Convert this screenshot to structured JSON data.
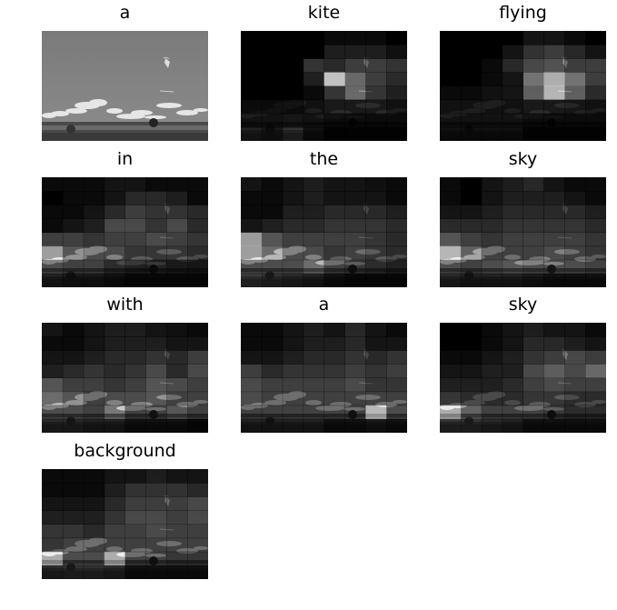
{
  "figure": {
    "words": [
      "a",
      "kite",
      "flying",
      "in",
      "the",
      "sky",
      "with",
      "a",
      "sky",
      "background"
    ]
  },
  "attention": {
    "grid_cols": 8,
    "grid_rows": 8,
    "maps": [
      [],
      [
        [
          0,
          0,
          0,
          0,
          0.05,
          0.05,
          0.05,
          0
        ],
        [
          0,
          0,
          0,
          0,
          0.15,
          0.15,
          0.15,
          0.08
        ],
        [
          0,
          0,
          0,
          0.25,
          0.2,
          0.3,
          0.3,
          0.25
        ],
        [
          0,
          0,
          0,
          0.15,
          0.9,
          0.5,
          0.3,
          0.2
        ],
        [
          0,
          0,
          0,
          0.05,
          0.25,
          0.5,
          0.25,
          0.15
        ],
        [
          0.05,
          0.05,
          0.05,
          0.08,
          0.12,
          0.12,
          0.12,
          0.08
        ],
        [
          0.08,
          0.08,
          0.1,
          0.08,
          0.05,
          0.05,
          0.05,
          0.05
        ],
        [
          0.2,
          0.15,
          0.3,
          0.1,
          0.02,
          0.02,
          0.02,
          0.02
        ]
      ],
      [
        [
          0,
          0,
          0,
          0,
          0.1,
          0.1,
          0.05,
          0
        ],
        [
          0,
          0,
          0,
          0.1,
          0.25,
          0.3,
          0.2,
          0.1
        ],
        [
          0,
          0,
          0.05,
          0.2,
          0.35,
          0.4,
          0.3,
          0.3
        ],
        [
          0,
          0,
          0.05,
          0.1,
          0.55,
          0.75,
          0.55,
          0.3
        ],
        [
          0.05,
          0.05,
          0.08,
          0.1,
          0.45,
          0.8,
          0.45,
          0.2
        ],
        [
          0.08,
          0.08,
          0.08,
          0.08,
          0.12,
          0.12,
          0.1,
          0.08
        ],
        [
          0.08,
          0.08,
          0.08,
          0.08,
          0.05,
          0.05,
          0.05,
          0.05
        ],
        [
          0.1,
          0.1,
          0.1,
          0.1,
          0.02,
          0.02,
          0.02,
          0.02
        ]
      ],
      [
        [
          0.05,
          0.05,
          0.05,
          0.1,
          0.1,
          0.05,
          0.05,
          0.05
        ],
        [
          0,
          0.05,
          0.05,
          0.1,
          0.2,
          0.2,
          0.15,
          0.05
        ],
        [
          0.05,
          0.05,
          0.1,
          0.2,
          0.3,
          0.25,
          0.25,
          0.2
        ],
        [
          0.05,
          0.1,
          0.15,
          0.35,
          0.35,
          0.25,
          0.35,
          0.2
        ],
        [
          0.3,
          0.3,
          0.25,
          0.3,
          0.3,
          0.35,
          0.3,
          0.25
        ],
        [
          0.6,
          0.4,
          0.35,
          0.35,
          0.25,
          0.25,
          0.25,
          0.2
        ],
        [
          0.35,
          0.3,
          0.3,
          0.2,
          0.15,
          0.15,
          0.12,
          0.1
        ],
        [
          0.2,
          0.15,
          0.15,
          0.1,
          0.05,
          0.05,
          0.05,
          0.05
        ]
      ],
      [
        [
          0.1,
          0.05,
          0.1,
          0.15,
          0.1,
          0.1,
          0.08,
          0.05
        ],
        [
          0.05,
          0.05,
          0.1,
          0.15,
          0.1,
          0.1,
          0.1,
          0.05
        ],
        [
          0.05,
          0.05,
          0.15,
          0.15,
          0.2,
          0.2,
          0.2,
          0.15
        ],
        [
          0.1,
          0.15,
          0.2,
          0.2,
          0.25,
          0.25,
          0.25,
          0.2
        ],
        [
          0.6,
          0.4,
          0.3,
          0.3,
          0.3,
          0.3,
          0.25,
          0.2
        ],
        [
          0.6,
          0.5,
          0.35,
          0.35,
          0.25,
          0.3,
          0.25,
          0.2
        ],
        [
          0.35,
          0.35,
          0.35,
          0.5,
          0.3,
          0.25,
          0.2,
          0.15
        ],
        [
          0.35,
          0.3,
          0.25,
          0.2,
          0.1,
          0.05,
          0.05,
          0.05
        ]
      ],
      [
        [
          0.05,
          0,
          0.1,
          0.15,
          0.2,
          0.1,
          0.05,
          0.05
        ],
        [
          0.05,
          0,
          0.1,
          0.15,
          0.15,
          0.15,
          0.1,
          0.05
        ],
        [
          0.1,
          0.1,
          0.15,
          0.2,
          0.2,
          0.2,
          0.2,
          0.15
        ],
        [
          0.2,
          0.2,
          0.2,
          0.25,
          0.25,
          0.25,
          0.25,
          0.2
        ],
        [
          0.4,
          0.3,
          0.25,
          0.3,
          0.3,
          0.3,
          0.3,
          0.25
        ],
        [
          0.8,
          0.45,
          0.3,
          0.3,
          0.3,
          0.35,
          0.3,
          0.25
        ],
        [
          0.35,
          0.3,
          0.35,
          0.4,
          0.35,
          0.35,
          0.35,
          0.3
        ],
        [
          0.25,
          0.2,
          0.2,
          0.2,
          0.15,
          0.1,
          0.1,
          0.1
        ]
      ],
      [
        [
          0.1,
          0.05,
          0.1,
          0.15,
          0.15,
          0.1,
          0.08,
          0.05
        ],
        [
          0.05,
          0.05,
          0.1,
          0.15,
          0.15,
          0.15,
          0.1,
          0.1
        ],
        [
          0.1,
          0.1,
          0.15,
          0.2,
          0.2,
          0.25,
          0.2,
          0.3
        ],
        [
          0.15,
          0.2,
          0.25,
          0.2,
          0.25,
          0.35,
          0.2,
          0.35
        ],
        [
          0.4,
          0.3,
          0.3,
          0.25,
          0.3,
          0.4,
          0.35,
          0.3
        ],
        [
          0.5,
          0.4,
          0.3,
          0.35,
          0.35,
          0.4,
          0.3,
          0.3
        ],
        [
          0.35,
          0.35,
          0.3,
          0.55,
          0.3,
          0.3,
          0.4,
          0.3
        ],
        [
          0.25,
          0.25,
          0.2,
          0.2,
          0.1,
          0.1,
          0.1,
          0.05
        ]
      ],
      [
        [
          0.05,
          0.05,
          0.1,
          0.15,
          0.1,
          0.2,
          0.1,
          0.05
        ],
        [
          0.05,
          0.05,
          0.1,
          0.15,
          0.15,
          0.2,
          0.1,
          0.1
        ],
        [
          0.1,
          0.1,
          0.15,
          0.2,
          0.2,
          0.25,
          0.2,
          0.25
        ],
        [
          0.3,
          0.2,
          0.25,
          0.25,
          0.25,
          0.3,
          0.25,
          0.3
        ],
        [
          0.35,
          0.3,
          0.3,
          0.3,
          0.3,
          0.35,
          0.25,
          0.25
        ],
        [
          0.35,
          0.3,
          0.3,
          0.3,
          0.3,
          0.3,
          0.3,
          0.3
        ],
        [
          0.3,
          0.3,
          0.3,
          0.3,
          0.3,
          0.3,
          0.8,
          0.35
        ],
        [
          0.2,
          0.2,
          0.2,
          0.2,
          0.1,
          0.1,
          0.15,
          0.1
        ]
      ],
      [
        [
          0,
          0,
          0.05,
          0.1,
          0.15,
          0.1,
          0.1,
          0.05
        ],
        [
          0,
          0,
          0.05,
          0.1,
          0.2,
          0.2,
          0.15,
          0.1
        ],
        [
          0.05,
          0.05,
          0.1,
          0.15,
          0.25,
          0.3,
          0.35,
          0.3
        ],
        [
          0.1,
          0.1,
          0.15,
          0.15,
          0.35,
          0.45,
          0.35,
          0.5
        ],
        [
          0.15,
          0.15,
          0.15,
          0.2,
          0.3,
          0.35,
          0.3,
          0.3
        ],
        [
          0.25,
          0.2,
          0.2,
          0.2,
          0.25,
          0.25,
          0.2,
          0.2
        ],
        [
          0.7,
          0.45,
          0.3,
          0.3,
          0.3,
          0.25,
          0.2,
          0.2
        ],
        [
          0.3,
          0.3,
          0.25,
          0.2,
          0.1,
          0.1,
          0.1,
          0.1
        ]
      ],
      [
        [
          0.05,
          0.05,
          0.05,
          0.1,
          0.1,
          0.15,
          0.1,
          0.1
        ],
        [
          0.05,
          0.05,
          0.05,
          0.15,
          0.25,
          0.25,
          0.25,
          0.2
        ],
        [
          0.1,
          0.1,
          0.1,
          0.2,
          0.3,
          0.3,
          0.3,
          0.35
        ],
        [
          0.15,
          0.15,
          0.15,
          0.25,
          0.35,
          0.35,
          0.3,
          0.35
        ],
        [
          0.25,
          0.25,
          0.2,
          0.3,
          0.3,
          0.35,
          0.3,
          0.3
        ],
        [
          0.25,
          0.3,
          0.3,
          0.3,
          0.3,
          0.3,
          0.3,
          0.3
        ],
        [
          0.7,
          0.35,
          0.35,
          0.7,
          0.3,
          0.3,
          0.25,
          0.25
        ],
        [
          0.25,
          0.3,
          0.3,
          0.25,
          0.1,
          0.1,
          0.1,
          0.1
        ]
      ]
    ]
  }
}
